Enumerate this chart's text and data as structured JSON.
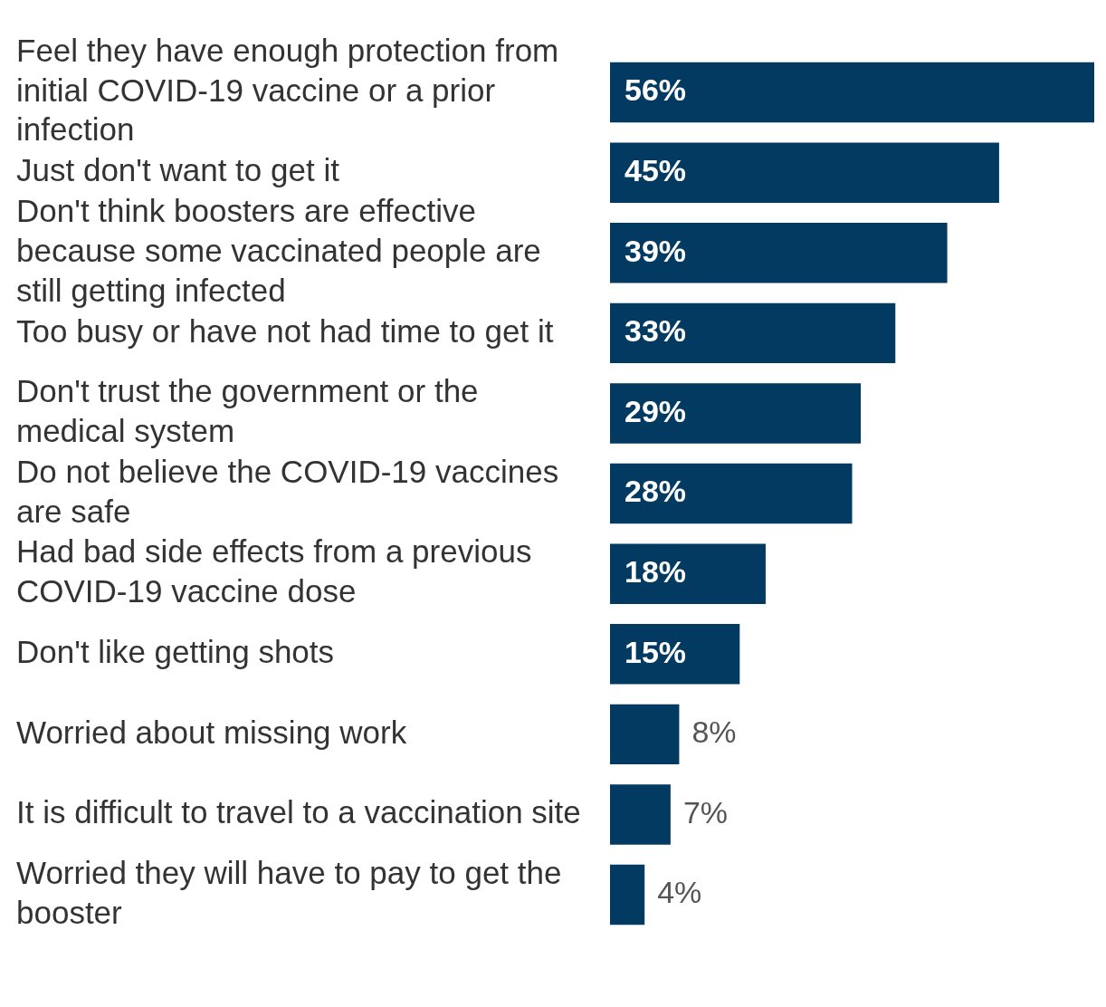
{
  "chart_data": {
    "type": "bar",
    "orientation": "horizontal",
    "categories": [
      "Feel they have enough protection from initial COVID-19 vaccine or a prior infection",
      "Just don't want to get it",
      "Don't think boosters are effective because some vaccinated people are still getting infected",
      "Too busy or have not had time to get it",
      "Don't trust the government or the medical system",
      "Do not believe the COVID-19 vaccines are safe",
      "Had bad side effects from a previous COVID-19 vaccine dose",
      "Don't like getting shots",
      "Worried about missing work",
      "It is difficult to travel to a vaccination site",
      "Worried they will have to pay to get the booster"
    ],
    "values": [
      56,
      45,
      39,
      33,
      29,
      28,
      18,
      15,
      8,
      7,
      4
    ],
    "value_labels": [
      "56%",
      "45%",
      "39%",
      "33%",
      "29%",
      "28%",
      "18%",
      "15%",
      "8%",
      "7%",
      "4%"
    ],
    "color": "#023a62",
    "xlim": [
      0,
      56
    ],
    "tick_labels": "y",
    "legend": false
  }
}
